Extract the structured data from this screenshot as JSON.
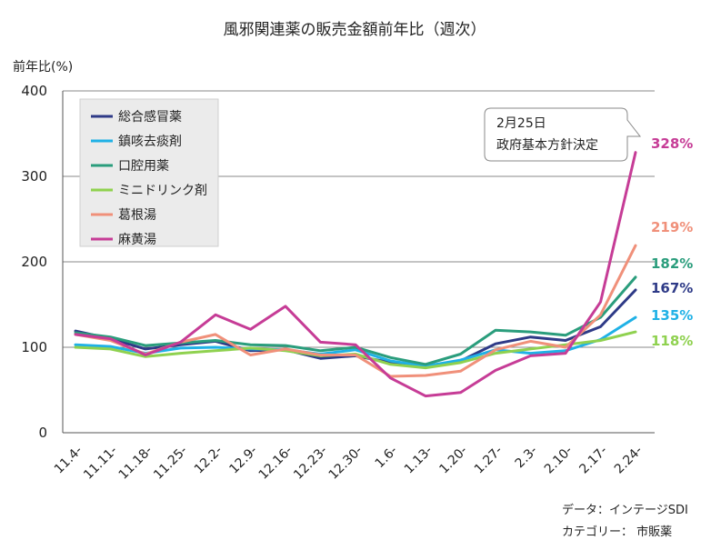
{
  "chart_data": {
    "type": "line",
    "title": "風邪関連薬の販売金額前年比（週次）",
    "ylabel": "前年比(%)",
    "ylim": [
      0,
      400
    ],
    "yticks": [
      0,
      100,
      200,
      300,
      400
    ],
    "grid": true,
    "legend_position": "top-left",
    "categories": [
      "11.4-",
      "11.11-",
      "11.18-",
      "11.25-",
      "12.2-",
      "12.9-",
      "12.16-",
      "12.23-",
      "12.30-",
      "1.6-",
      "1.13-",
      "1.20-",
      "1.27-",
      "2.3-",
      "2.10-",
      "2.17-",
      "2.24-"
    ],
    "series": [
      {
        "name": "総合感冒薬",
        "color": "#2e3a87",
        "end_label": "167%",
        "values": [
          119,
          110,
          98,
          103,
          107,
          96,
          97,
          87,
          90,
          82,
          78,
          84,
          104,
          112,
          108,
          124,
          167
        ]
      },
      {
        "name": "鎮咳去痰剤",
        "color": "#1fb1e6",
        "end_label": "135%",
        "values": [
          103,
          101,
          93,
          99,
          100,
          98,
          97,
          92,
          97,
          84,
          78,
          85,
          97,
          93,
          96,
          109,
          135
        ]
      },
      {
        "name": "口腔用薬",
        "color": "#2a9d7c",
        "end_label": "182%",
        "values": [
          117,
          112,
          102,
          105,
          108,
          103,
          102,
          96,
          100,
          88,
          80,
          92,
          120,
          118,
          114,
          135,
          182
        ]
      },
      {
        "name": "ミニドリンク剤",
        "color": "#8fd14f",
        "end_label": "118%",
        "values": [
          100,
          98,
          89,
          93,
          96,
          99,
          96,
          90,
          92,
          80,
          76,
          82,
          93,
          98,
          103,
          108,
          118
        ]
      },
      {
        "name": "葛根湯",
        "color": "#f0907a",
        "end_label": "219%",
        "values": [
          115,
          108,
          92,
          106,
          115,
          91,
          98,
          91,
          91,
          66,
          67,
          72,
          97,
          107,
          100,
          138,
          219
        ]
      },
      {
        "name": "麻黄湯",
        "color": "#c63c96",
        "end_label": "328%",
        "values": [
          115,
          110,
          91,
          106,
          138,
          121,
          148,
          106,
          103,
          64,
          43,
          47,
          73,
          90,
          93,
          153,
          328
        ]
      }
    ],
    "annotation": {
      "lines": [
        "2月25日",
        "政府基本方針決定"
      ]
    },
    "source": [
      "データ：インテージSDI",
      "カテゴリー： 市販薬"
    ]
  }
}
